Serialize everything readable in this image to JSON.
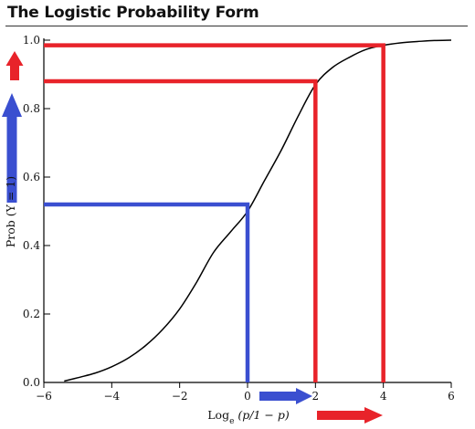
{
  "chart_data": {
    "type": "line",
    "title": "The Logistic Probability Form",
    "xlabel": {
      "base": "Log",
      "subscript": "e",
      "expr": "(p/1 − p)"
    },
    "ylabel": "Prob (Y = 1)",
    "xlim": [
      -6,
      6
    ],
    "ylim": [
      0,
      1
    ],
    "x_ticks": [
      -6,
      -4,
      -2,
      0,
      2,
      4,
      6
    ],
    "x_tick_labels": [
      "−6",
      "−4",
      "−2",
      "0",
      "2",
      "4",
      "6"
    ],
    "y_ticks": [
      0,
      0.2,
      0.4,
      0.6,
      0.8,
      1.0
    ],
    "y_tick_labels": [
      "0.0",
      "0.2",
      "0.4",
      "0.6",
      "0.8",
      "1.0"
    ],
    "grid": false,
    "series": [
      {
        "x": [
          -5.4,
          -5.0,
          -4.5,
          -4.0,
          -3.5,
          -3.0,
          -2.5,
          -2.0,
          -1.5,
          -1.0,
          -0.5,
          0.0,
          0.5,
          1.0,
          1.5,
          2.0,
          2.5,
          3.0,
          3.5,
          4.0,
          4.5,
          5.0,
          5.5,
          6.0
        ],
        "y": [
          0.004,
          0.014,
          0.027,
          0.046,
          0.072,
          0.108,
          0.155,
          0.215,
          0.293,
          0.38,
          0.44,
          0.5,
          0.59,
          0.68,
          0.78,
          0.87,
          0.92,
          0.95,
          0.973,
          0.985,
          0.992,
          0.996,
          0.999,
          1.0
        ],
        "color": "#000000"
      }
    ],
    "highlights": [
      {
        "x": 0,
        "y": 0.52,
        "color": "#3a4fd0"
      },
      {
        "x": 2,
        "y": 0.88,
        "color": "#e8232a"
      },
      {
        "x": 4,
        "y": 0.985,
        "color": "#e8232a"
      }
    ],
    "arrows": [
      {
        "direction": "up",
        "color": "#e8232a",
        "size": "small"
      },
      {
        "direction": "up",
        "color": "#3a4fd0",
        "size": "large"
      },
      {
        "direction": "right",
        "color": "#3a4fd0",
        "size": "large"
      },
      {
        "direction": "right",
        "color": "#e8232a",
        "size": "large"
      }
    ]
  }
}
